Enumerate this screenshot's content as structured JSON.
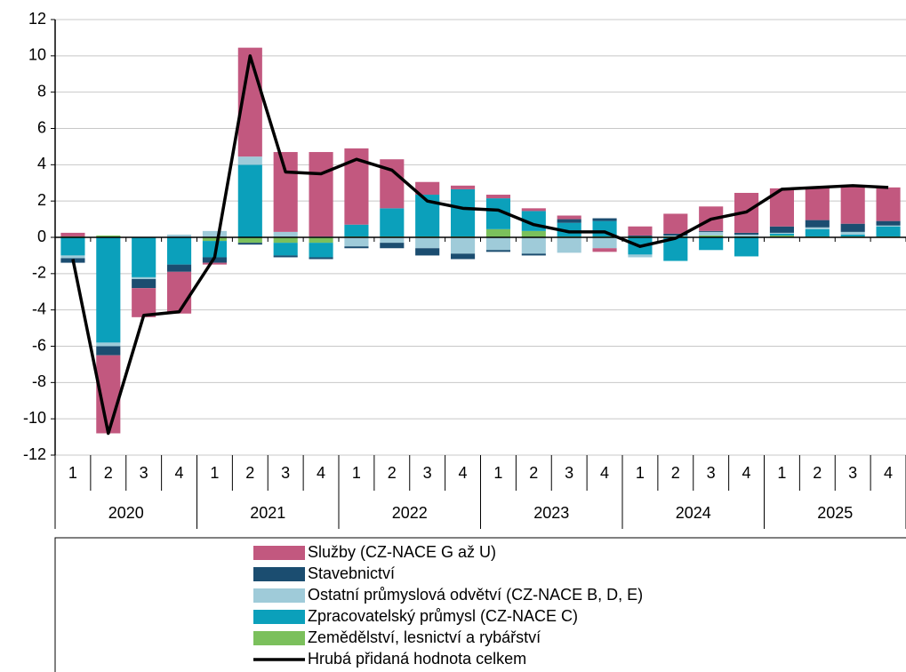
{
  "chart_data": {
    "type": "bar",
    "stacked": true,
    "categories": [
      "1",
      "2",
      "3",
      "4",
      "1",
      "2",
      "3",
      "4",
      "1",
      "2",
      "3",
      "4",
      "1",
      "2",
      "3",
      "4",
      "1",
      "2",
      "3",
      "4",
      "1",
      "2",
      "3",
      "4"
    ],
    "years": [
      "2020",
      "2021",
      "2022",
      "2023",
      "2024",
      "2025"
    ],
    "ylim": [
      -12,
      12
    ],
    "yticks": [
      -12,
      -10,
      -8,
      -6,
      -4,
      -2,
      0,
      2,
      4,
      6,
      8,
      10,
      12
    ],
    "grid": true,
    "series": [
      {
        "name": "Služby (CZ-NACE G až U)",
        "type": "bar",
        "color": "#c2587f",
        "values": [
          0.2,
          -4.3,
          -1.6,
          -2.3,
          -0.1,
          6.0,
          4.4,
          4.65,
          4.2,
          2.7,
          0.7,
          0.2,
          0.2,
          0.15,
          0.2,
          -0.2,
          0.5,
          1.1,
          1.35,
          2.2,
          2.1,
          1.8,
          2.05,
          1.85
        ]
      },
      {
        "name": "Stavebnictví",
        "type": "bar",
        "color": "#1b4d70",
        "values": [
          -0.25,
          -0.5,
          -0.5,
          -0.4,
          -0.3,
          -0.1,
          -0.1,
          -0.1,
          -0.1,
          -0.3,
          -0.4,
          -0.3,
          -0.1,
          -0.1,
          0.2,
          0.15,
          0.05,
          0.1,
          0.05,
          0.1,
          0.35,
          0.4,
          0.45,
          0.25
        ]
      },
      {
        "name": "Ostatní průmyslová odvětví (CZ-NACE B, D, E)",
        "type": "bar",
        "color": "#9fcbd9",
        "values": [
          -0.15,
          -0.2,
          -0.1,
          0.15,
          0.35,
          0.45,
          0.3,
          0.05,
          -0.5,
          -0.3,
          -0.6,
          -0.9,
          -0.7,
          -0.9,
          -0.85,
          -0.6,
          -0.15,
          0.05,
          0.2,
          0.1,
          0.05,
          0.1,
          0.15,
          0.05
        ]
      },
      {
        "name": "Zpracovatelský průmysl (CZ-NACE C)",
        "type": "bar",
        "color": "#0ba0bb",
        "values": [
          -1.0,
          -5.8,
          -2.2,
          -1.5,
          -0.9,
          4.0,
          -0.7,
          -0.8,
          0.65,
          1.55,
          2.3,
          2.6,
          1.7,
          1.1,
          0.75,
          0.85,
          -0.95,
          -1.3,
          -0.7,
          -1.05,
          0.1,
          0.4,
          0.1,
          0.55
        ]
      },
      {
        "name": "Zemědělství, lesnictví a rybářství",
        "type": "bar",
        "color": "#7bc05c",
        "values": [
          0.05,
          0.1,
          0,
          0,
          -0.2,
          -0.3,
          -0.3,
          -0.3,
          0.05,
          0.05,
          0.05,
          0.05,
          0.45,
          0.35,
          0.05,
          0.05,
          0.05,
          0.05,
          0.1,
          0.05,
          0.1,
          0.05,
          0.05,
          0.05
        ]
      },
      {
        "name": "Hrubá přidaná hodnota celkem",
        "type": "line",
        "color": "#000000",
        "values": [
          -1.2,
          -10.8,
          -4.3,
          -4.1,
          -1.1,
          10.0,
          3.6,
          3.5,
          4.3,
          3.7,
          2.0,
          1.6,
          1.5,
          0.7,
          0.3,
          0.3,
          -0.5,
          -0.05,
          1.0,
          1.4,
          2.65,
          2.75,
          2.85,
          2.75
        ]
      }
    ]
  }
}
